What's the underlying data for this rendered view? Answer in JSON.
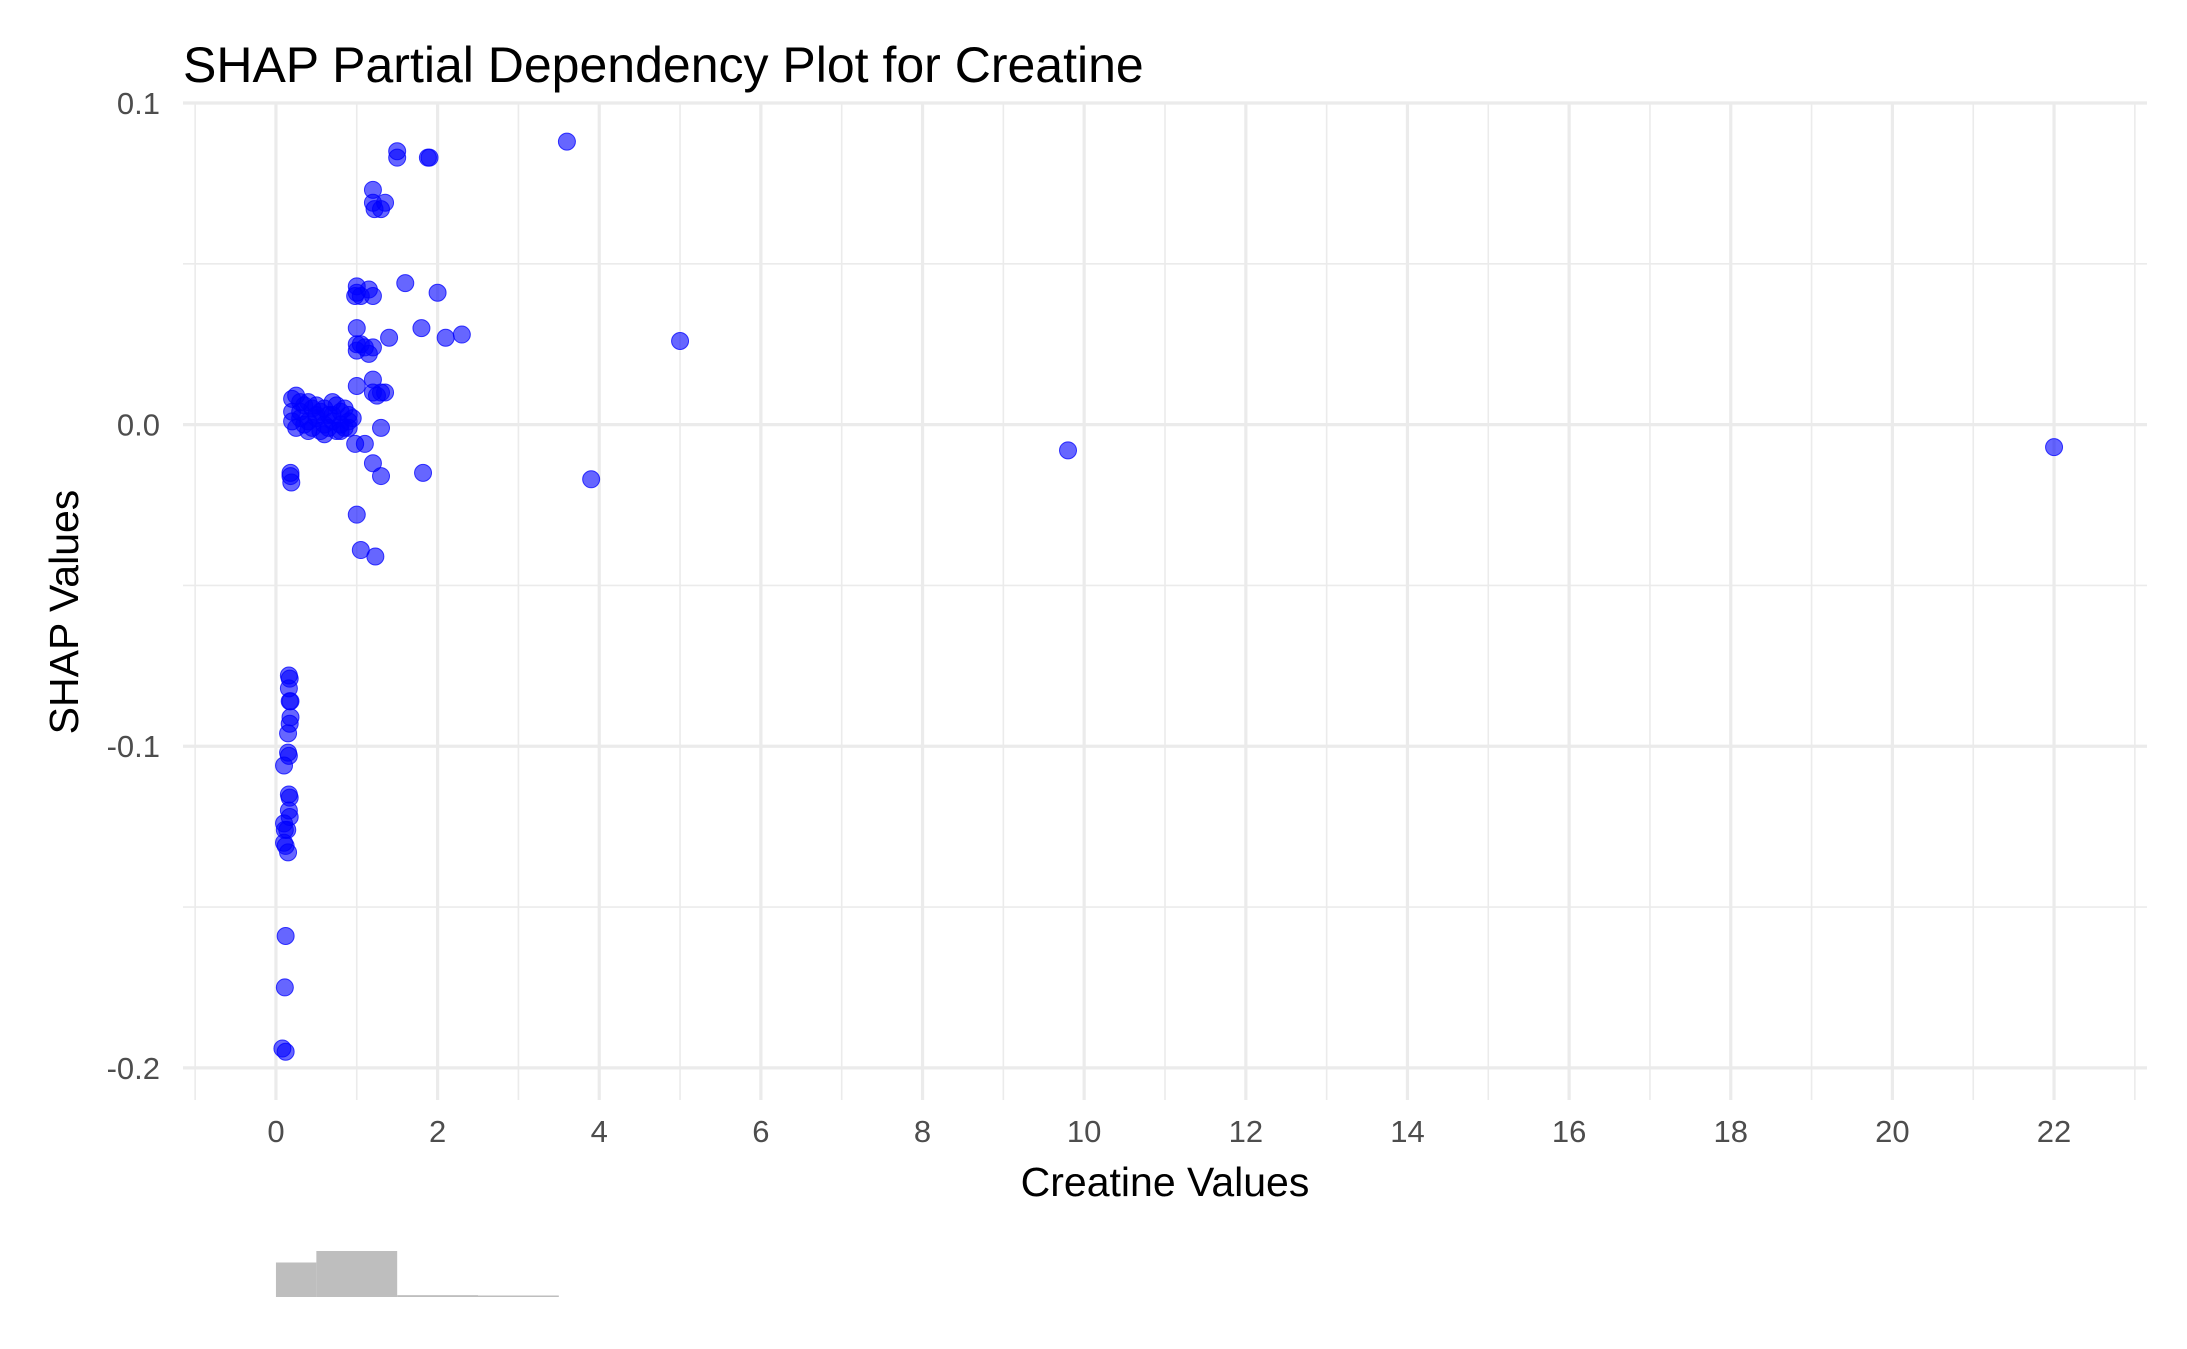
{
  "chart_data": {
    "type": "scatter",
    "title": "SHAP Partial Dependency Plot for Creatine",
    "xlabel": "Creatine Values",
    "ylabel": "SHAP Values",
    "xlim": [
      -1.15,
      23.15
    ],
    "ylim": [
      -0.21,
      0.1
    ],
    "x_ticks": [
      0,
      2,
      4,
      6,
      8,
      10,
      12,
      14,
      16,
      18,
      20,
      22
    ],
    "x_tick_labels": [
      "0",
      "2",
      "4",
      "6",
      "8",
      "10",
      "12",
      "14",
      "16",
      "18",
      "20",
      "22"
    ],
    "y_ticks": [
      -0.2,
      -0.1,
      0.0,
      0.1
    ],
    "y_tick_labels": [
      "-0.2",
      "-0.1",
      "0.0",
      "0.1"
    ],
    "grid": true,
    "point_color": "#0000ff",
    "point_opacity": 0.6,
    "points": [
      [
        3.6,
        0.088
      ],
      [
        1.5,
        0.085
      ],
      [
        1.5,
        0.083
      ],
      [
        1.9,
        0.083
      ],
      [
        1.88,
        0.083
      ],
      [
        1.2,
        0.073
      ],
      [
        1.35,
        0.069
      ],
      [
        1.2,
        0.069
      ],
      [
        1.22,
        0.067
      ],
      [
        1.3,
        0.067
      ],
      [
        1.6,
        0.044
      ],
      [
        2.0,
        0.041
      ],
      [
        1.0,
        0.043
      ],
      [
        1.0,
        0.041
      ],
      [
        1.15,
        0.042
      ],
      [
        1.2,
        0.04
      ],
      [
        1.05,
        0.04
      ],
      [
        0.98,
        0.04
      ],
      [
        1.8,
        0.03
      ],
      [
        1.0,
        0.03
      ],
      [
        2.3,
        0.028
      ],
      [
        1.4,
        0.027
      ],
      [
        2.1,
        0.027
      ],
      [
        5.0,
        0.026
      ],
      [
        1.0,
        0.025
      ],
      [
        1.05,
        0.025
      ],
      [
        1.1,
        0.024
      ],
      [
        1.2,
        0.024
      ],
      [
        1.0,
        0.023
      ],
      [
        1.15,
        0.022
      ],
      [
        1.2,
        0.014
      ],
      [
        1.0,
        0.012
      ],
      [
        1.35,
        0.01
      ],
      [
        1.2,
        0.01
      ],
      [
        1.25,
        0.009
      ],
      [
        1.3,
        0.01
      ],
      [
        0.2,
        0.008
      ],
      [
        0.25,
        0.009
      ],
      [
        0.3,
        0.007
      ],
      [
        0.35,
        0.006
      ],
      [
        0.4,
        0.007
      ],
      [
        0.45,
        0.005
      ],
      [
        0.5,
        0.006
      ],
      [
        0.55,
        0.004
      ],
      [
        0.6,
        0.005
      ],
      [
        0.65,
        0.003
      ],
      [
        0.7,
        0.007
      ],
      [
        0.75,
        0.006
      ],
      [
        0.8,
        0.004
      ],
      [
        0.85,
        0.005
      ],
      [
        0.9,
        0.003
      ],
      [
        0.2,
        0.004
      ],
      [
        0.3,
        0.002
      ],
      [
        0.4,
        0.001
      ],
      [
        0.5,
        0.002
      ],
      [
        0.6,
        0.0
      ],
      [
        0.7,
        0.001
      ],
      [
        0.8,
        0.0
      ],
      [
        0.9,
        0.001
      ],
      [
        0.25,
        -0.001
      ],
      [
        0.35,
        0.0
      ],
      [
        0.45,
        -0.001
      ],
      [
        0.55,
        -0.002
      ],
      [
        0.65,
        -0.001
      ],
      [
        0.75,
        -0.002
      ],
      [
        0.85,
        -0.001
      ],
      [
        0.95,
        0.002
      ],
      [
        0.2,
        0.001
      ],
      [
        0.3,
        0.004
      ],
      [
        0.5,
        0.003
      ],
      [
        0.7,
        0.003
      ],
      [
        0.9,
        -0.001
      ],
      [
        0.4,
        -0.002
      ],
      [
        0.6,
        -0.003
      ],
      [
        0.8,
        -0.002
      ],
      [
        1.3,
        -0.001
      ],
      [
        0.98,
        -0.006
      ],
      [
        1.1,
        -0.006
      ],
      [
        9.8,
        -0.008
      ],
      [
        22.0,
        -0.007
      ],
      [
        1.2,
        -0.012
      ],
      [
        1.3,
        -0.016
      ],
      [
        1.82,
        -0.015
      ],
      [
        3.9,
        -0.017
      ],
      [
        0.18,
        -0.015
      ],
      [
        0.18,
        -0.016
      ],
      [
        0.19,
        -0.018
      ],
      [
        1.0,
        -0.028
      ],
      [
        1.05,
        -0.039
      ],
      [
        1.23,
        -0.041
      ],
      [
        0.16,
        -0.078
      ],
      [
        0.17,
        -0.079
      ],
      [
        0.16,
        -0.082
      ],
      [
        0.17,
        -0.086
      ],
      [
        0.18,
        -0.086
      ],
      [
        0.18,
        -0.091
      ],
      [
        0.17,
        -0.093
      ],
      [
        0.15,
        -0.096
      ],
      [
        0.15,
        -0.102
      ],
      [
        0.16,
        -0.103
      ],
      [
        0.1,
        -0.106
      ],
      [
        0.16,
        -0.115
      ],
      [
        0.17,
        -0.116
      ],
      [
        0.16,
        -0.12
      ],
      [
        0.17,
        -0.122
      ],
      [
        0.1,
        -0.124
      ],
      [
        0.11,
        -0.126
      ],
      [
        0.14,
        -0.126
      ],
      [
        0.1,
        -0.13
      ],
      [
        0.12,
        -0.131
      ],
      [
        0.15,
        -0.133
      ],
      [
        0.12,
        -0.159
      ],
      [
        0.11,
        -0.175
      ],
      [
        0.08,
        -0.194
      ],
      [
        0.12,
        -0.195
      ]
    ],
    "histogram": {
      "bin_edges": [
        0,
        0.5,
        1.5,
        2.5,
        3.5
      ],
      "relative_counts": [
        0.75,
        1.0,
        0.04,
        0.01
      ],
      "color": "#bebebe"
    }
  }
}
